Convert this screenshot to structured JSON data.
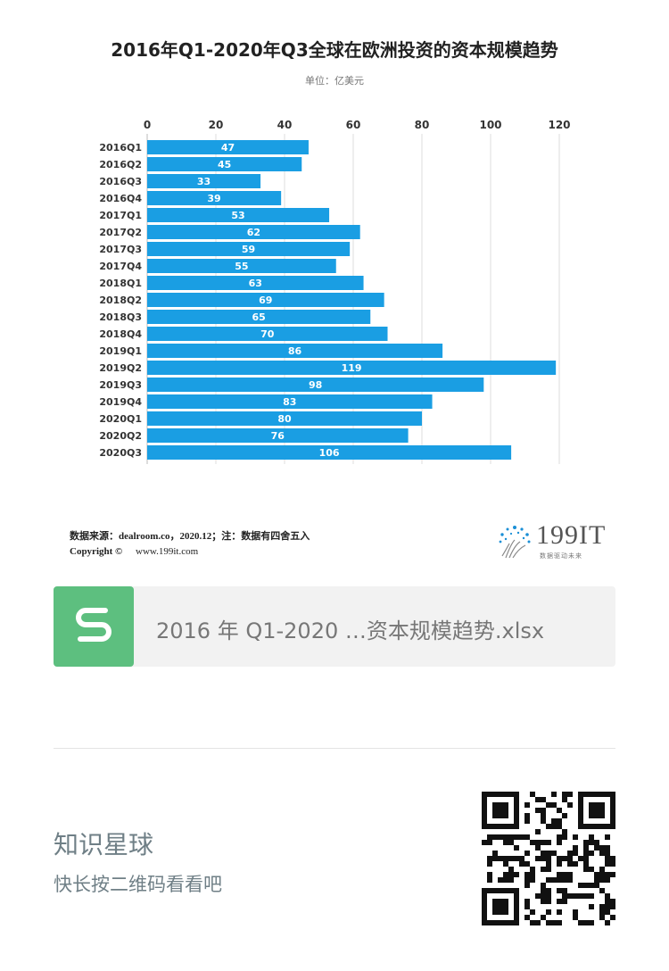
{
  "chart_data": {
    "type": "bar",
    "orientation": "horizontal",
    "title": "2016年Q1-2020年Q3全球在欧洲投资的资本规模趋势",
    "subtitle": "单位：亿美元",
    "categories": [
      "2016Q1",
      "2016Q2",
      "2016Q3",
      "2016Q4",
      "2017Q1",
      "2017Q2",
      "2017Q3",
      "2017Q4",
      "2018Q1",
      "2018Q2",
      "2018Q3",
      "2018Q4",
      "2019Q1",
      "2019Q2",
      "2019Q3",
      "2019Q4",
      "2020Q1",
      "2020Q2",
      "2020Q3"
    ],
    "values": [
      47,
      45,
      33,
      39,
      53,
      62,
      59,
      55,
      63,
      69,
      65,
      70,
      86,
      119,
      98,
      83,
      80,
      76,
      106
    ],
    "xlim": [
      0,
      120
    ],
    "xticks": [
      0,
      20,
      40,
      60,
      80,
      100,
      120
    ],
    "axis_position": "top",
    "grid": true,
    "bar_color": "#1a9ee3"
  },
  "footer": {
    "source": "数据来源：dealroom.co，2020.12；注：数据有四舍五入",
    "copyright_label": "Copyright ©",
    "copyright_url": "www.199it.com",
    "logo_text": "199IT",
    "logo_tagline": "数据驱动未来"
  },
  "file_card": {
    "icon": "spreadsheet-s-icon",
    "file_name": "2016 年 Q1-2020 …资本规模趋势.xlsx"
  },
  "brand": {
    "name": "知识星球",
    "hint": "快长按二维码看看吧"
  },
  "colors": {
    "bar": "#1a9ee3",
    "file_icon": "#5dbf7f",
    "brand_text": "#6f7f86"
  }
}
